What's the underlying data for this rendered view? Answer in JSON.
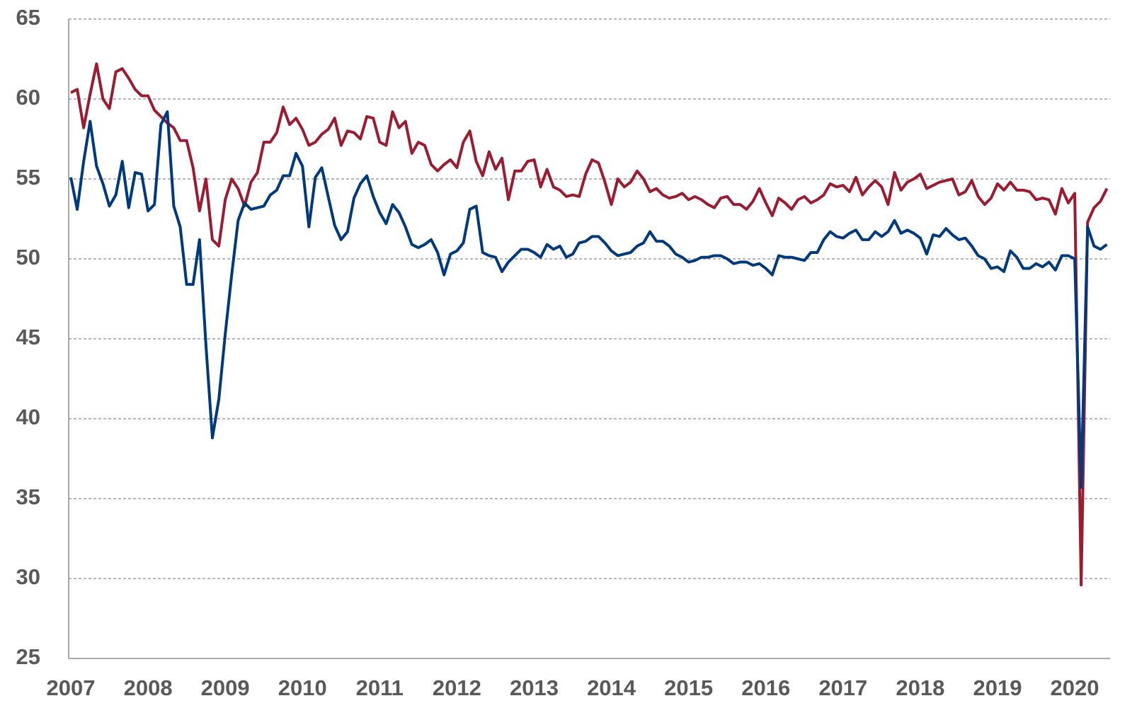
{
  "chart_data": {
    "type": "line",
    "categories": [
      "2007",
      null,
      null,
      null,
      null,
      null,
      null,
      null,
      null,
      null,
      null,
      null,
      "2008",
      null,
      null,
      null,
      null,
      null,
      null,
      null,
      null,
      null,
      null,
      null,
      "2009",
      null,
      null,
      null,
      null,
      null,
      null,
      null,
      null,
      null,
      null,
      null,
      "2010",
      null,
      null,
      null,
      null,
      null,
      null,
      null,
      null,
      null,
      null,
      null,
      "2011",
      null,
      null,
      null,
      null,
      null,
      null,
      null,
      null,
      null,
      null,
      null,
      "2012",
      null,
      null,
      null,
      null,
      null,
      null,
      null,
      null,
      null,
      null,
      null,
      "2013",
      null,
      null,
      null,
      null,
      null,
      null,
      null,
      null,
      null,
      null,
      null,
      "2014",
      null,
      null,
      null,
      null,
      null,
      null,
      null,
      null,
      null,
      null,
      null,
      "2015",
      null,
      null,
      null,
      null,
      null,
      null,
      null,
      null,
      null,
      null,
      null,
      "2016",
      null,
      null,
      null,
      null,
      null,
      null,
      null,
      null,
      null,
      null,
      null,
      "2017",
      null,
      null,
      null,
      null,
      null,
      null,
      null,
      null,
      null,
      null,
      null,
      "2018",
      null,
      null,
      null,
      null,
      null,
      null,
      null,
      null,
      null,
      null,
      null,
      "2019",
      null,
      null,
      null,
      null,
      null,
      null,
      null,
      null,
      null,
      null,
      null,
      "2020",
      null,
      null,
      null,
      null,
      null
    ],
    "series": [
      {
        "color": "#9b1c31",
        "values": [
          60.4,
          60.6,
          58.2,
          60.3,
          62.2,
          60.0,
          59.4,
          61.7,
          61.9,
          61.3,
          60.6,
          60.2,
          60.2,
          59.3,
          58.9,
          58.5,
          58.2,
          57.4,
          57.4,
          55.7,
          53.0,
          55.0,
          51.2,
          50.8,
          53.7,
          55.0,
          54.4,
          53.3,
          54.8,
          55.4,
          57.3,
          57.3,
          57.9,
          59.5,
          58.4,
          58.8,
          58.1,
          57.1,
          57.3,
          57.8,
          58.1,
          58.8,
          57.1,
          58.0,
          57.9,
          57.5,
          58.9,
          58.8,
          57.3,
          57.1,
          59.2,
          58.2,
          58.6,
          56.6,
          57.3,
          57.1,
          55.9,
          55.5,
          55.9,
          56.2,
          55.7,
          57.3,
          58.0,
          56.1,
          55.2,
          56.7,
          55.6,
          56.3,
          53.7,
          55.5,
          55.5,
          56.1,
          56.2,
          54.5,
          55.6,
          54.5,
          54.3,
          53.9,
          54.0,
          53.9,
          55.3,
          56.2,
          56.0,
          54.8,
          53.4,
          55.0,
          54.5,
          54.8,
          55.5,
          55.0,
          54.2,
          54.4,
          54.0,
          53.8,
          53.9,
          54.1,
          53.7,
          53.9,
          53.7,
          53.4,
          53.2,
          53.8,
          53.9,
          53.4,
          53.4,
          53.1,
          53.6,
          54.4,
          53.5,
          52.7,
          53.8,
          53.5,
          53.1,
          53.7,
          53.9,
          53.5,
          53.7,
          54.0,
          54.7,
          54.5,
          54.6,
          54.2,
          55.1,
          54.0,
          54.5,
          54.9,
          54.5,
          53.4,
          55.4,
          54.3,
          54.8,
          55.0,
          55.3,
          54.4,
          54.6,
          54.8,
          54.9,
          55.0,
          54.0,
          54.2,
          54.9,
          53.9,
          53.4,
          53.8,
          54.7,
          54.3,
          54.8,
          54.3,
          54.3,
          54.2,
          53.7,
          53.8,
          53.7,
          52.8,
          54.4,
          53.5,
          54.1,
          29.6,
          52.3,
          53.2,
          53.6,
          54.4
        ]
      },
      {
        "color": "#003a7d",
        "values": [
          55.1,
          53.1,
          56.1,
          58.6,
          55.8,
          54.7,
          53.3,
          54.0,
          56.1,
          53.2,
          55.4,
          55.3,
          53.0,
          53.4,
          58.4,
          59.2,
          53.3,
          52.0,
          48.4,
          48.4,
          51.2,
          44.6,
          38.8,
          41.2,
          45.3,
          49.0,
          52.4,
          53.5,
          53.1,
          53.2,
          53.3,
          54.0,
          54.3,
          55.2,
          55.2,
          56.6,
          55.8,
          52.0,
          55.1,
          55.7,
          53.9,
          52.1,
          51.2,
          51.7,
          53.8,
          54.7,
          55.2,
          53.9,
          52.9,
          52.2,
          53.4,
          52.9,
          52.0,
          50.9,
          50.7,
          50.9,
          51.2,
          50.4,
          49.0,
          50.3,
          50.5,
          51.0,
          53.1,
          53.3,
          50.4,
          50.2,
          50.1,
          49.2,
          49.8,
          50.2,
          50.6,
          50.6,
          50.4,
          50.1,
          50.9,
          50.6,
          50.8,
          50.1,
          50.3,
          51.0,
          51.1,
          51.4,
          51.4,
          51.0,
          50.5,
          50.2,
          50.3,
          50.4,
          50.8,
          51.0,
          51.7,
          51.1,
          51.1,
          50.8,
          50.3,
          50.1,
          49.8,
          49.9,
          50.1,
          50.1,
          50.2,
          50.2,
          50.0,
          49.7,
          49.8,
          49.8,
          49.6,
          49.7,
          49.4,
          49.0,
          50.2,
          50.1,
          50.1,
          50.0,
          49.9,
          50.4,
          50.4,
          51.2,
          51.7,
          51.4,
          51.3,
          51.6,
          51.8,
          51.2,
          51.2,
          51.7,
          51.4,
          51.7,
          52.4,
          51.6,
          51.8,
          51.6,
          51.3,
          50.3,
          51.5,
          51.4,
          51.9,
          51.5,
          51.2,
          51.3,
          50.8,
          50.2,
          50.0,
          49.4,
          49.5,
          49.2,
          50.5,
          50.1,
          49.4,
          49.4,
          49.7,
          49.5,
          49.8,
          49.3,
          50.2,
          50.2,
          50.0,
          35.7,
          52.0,
          50.8,
          50.6,
          50.9
        ]
      }
    ],
    "ylim": [
      25,
      65
    ],
    "yticks": [
      25,
      30,
      35,
      40,
      45,
      50,
      55,
      60,
      65
    ],
    "grid": true
  }
}
